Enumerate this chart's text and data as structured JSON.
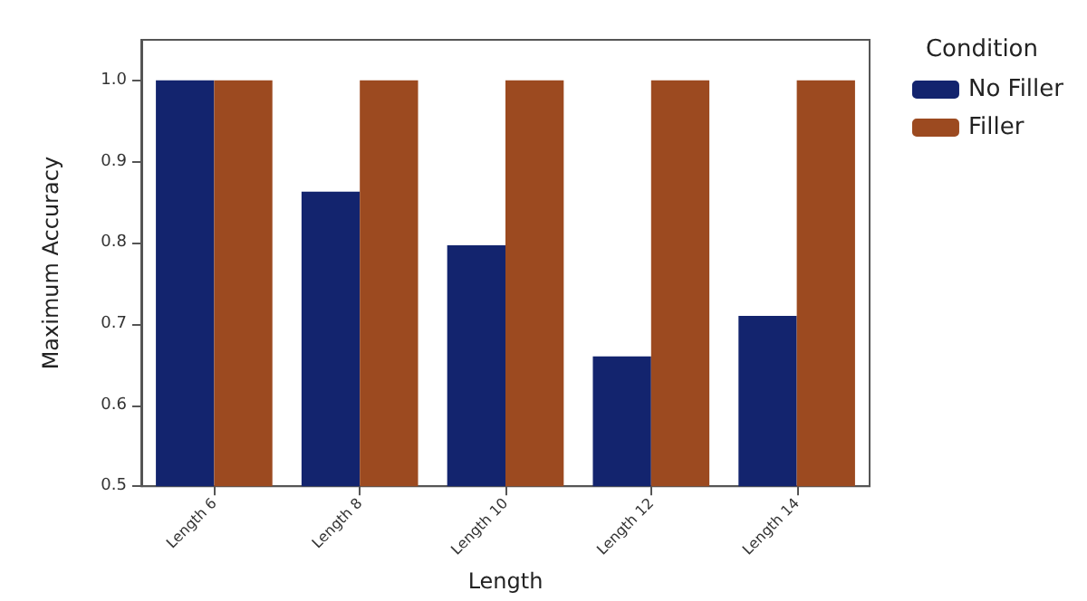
{
  "chart_data": {
    "type": "bar",
    "xlabel": "Length",
    "ylabel": "Maximum Accuracy",
    "legend_title": "Condition",
    "legend": "top right",
    "grid": false,
    "categories": [
      "Length 6",
      "Length 8",
      "Length 10",
      "Length 12",
      "Length 14"
    ],
    "series": [
      {
        "name": "No Filler",
        "color": "#13246e",
        "values": [
          1.0,
          0.863,
          0.797,
          0.66,
          0.71
        ]
      },
      {
        "name": "Filler",
        "color": "#9c4a20",
        "values": [
          1.0,
          1.0,
          1.0,
          1.0,
          1.0
        ]
      }
    ],
    "ylim": [
      0.5,
      1.05
    ],
    "yticks": [
      0.5,
      0.6,
      0.7,
      0.8,
      0.9,
      {
        "value": 1,
        "label": "1.0"
      }
    ]
  }
}
